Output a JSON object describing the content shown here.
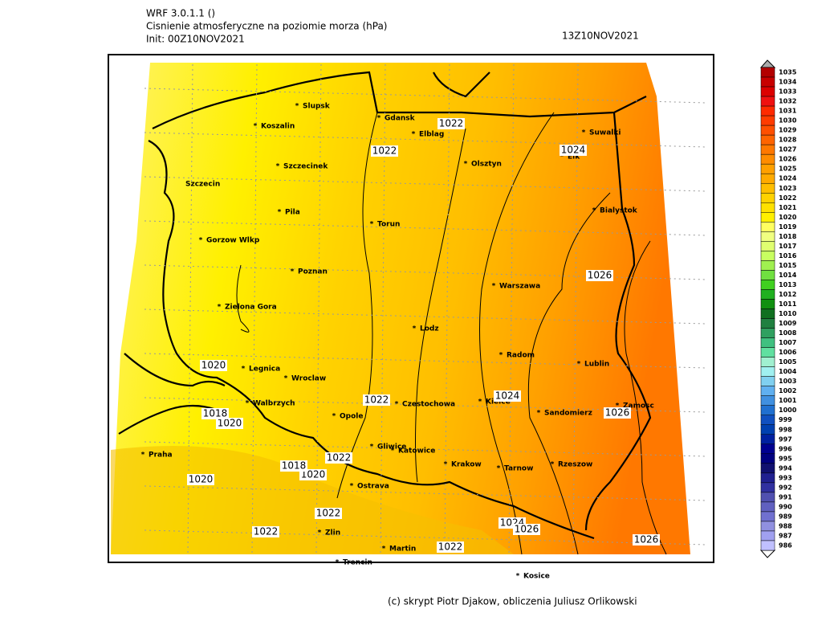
{
  "header": {
    "model": "WRF 3.0.1.1 ()",
    "title": "Cisnienie atmosferyczne na poziomie morza (hPa)",
    "init": "Init: 00Z10NOV2021",
    "valid": "13Z10NOV2021"
  },
  "footer": "(c) skrypt Piotr Djakow, obliczenia Juliusz Orlikowski",
  "cities": [
    "Slupsk",
    "Koszalin",
    "Gdansk",
    "Elblag",
    "Suwalki",
    "Elk",
    "Szczecinek",
    "Olsztyn",
    "Szczecin",
    "Pila",
    "Bialystok",
    "Torun",
    "Gorzow Wlkp",
    "Poznan",
    "Warszawa",
    "Zielona Gora",
    "Lodz",
    "Radom",
    "Lublin",
    "Legnica",
    "Wroclaw",
    "Walbrzych",
    "Czestochowa",
    "Kielce",
    "Zamosc",
    "Sandomierz",
    "Opole",
    "Gliwice",
    "Katowice",
    "Praha",
    "Krakow",
    "Tarnow",
    "Rzeszow",
    "Ostrava",
    "Zlin",
    "Martin",
    "Trencin",
    "Kosice"
  ],
  "contour_labels": [
    "1022",
    "1022",
    "1022",
    "1022",
    "1022",
    "1022",
    "1022",
    "1024",
    "1024",
    "1024",
    "1026",
    "1026",
    "1026",
    "1026",
    "1020",
    "1020",
    "1020",
    "1020",
    "1018",
    "1018"
  ],
  "colorbar": {
    "levels": [
      1035,
      1034,
      1033,
      1032,
      1031,
      1030,
      1029,
      1028,
      1027,
      1026,
      1025,
      1024,
      1023,
      1022,
      1021,
      1020,
      1019,
      1018,
      1017,
      1016,
      1015,
      1014,
      1013,
      1012,
      1011,
      1010,
      1009,
      1008,
      1007,
      1006,
      1005,
      1004,
      1003,
      1002,
      1001,
      1000,
      999,
      998,
      997,
      996,
      995,
      994,
      993,
      992,
      991,
      990,
      989,
      988,
      987,
      986
    ],
    "colors": [
      "#b30000",
      "#c80000",
      "#dc0000",
      "#f01010",
      "#ff2a00",
      "#ff3c00",
      "#ff5000",
      "#ff6400",
      "#ff7800",
      "#ff8c00",
      "#ffa000",
      "#ffaa00",
      "#ffbe00",
      "#ffd200",
      "#ffe100",
      "#fff000",
      "#ffff60",
      "#f0ff80",
      "#e0ff70",
      "#c8ff60",
      "#a0f050",
      "#70e040",
      "#40d020",
      "#20b020",
      "#109010",
      "#107020",
      "#208040",
      "#30a060",
      "#40c080",
      "#60e0a0",
      "#a0f0d0",
      "#a0f0f0",
      "#80d0f0",
      "#60b0f0",
      "#4090e0",
      "#2070d0",
      "#1050c0",
      "#0040b0",
      "#0020a0",
      "#000090",
      "#000080",
      "#101070",
      "#202090",
      "#3030a0",
      "#5050b0",
      "#6060c0",
      "#7070d0",
      "#9090e0",
      "#a0a0f0",
      "#c0c0ff"
    ]
  }
}
